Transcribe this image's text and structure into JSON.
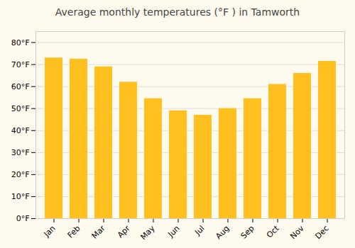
{
  "chart_data": {
    "type": "bar",
    "title": "Average monthly temperatures (°F ) in Tamworth",
    "categories": [
      "Jan",
      "Feb",
      "Mar",
      "Apr",
      "May",
      "Jun",
      "Jul",
      "Aug",
      "Sep",
      "Oct",
      "Nov",
      "Dec"
    ],
    "values": [
      73,
      72.5,
      69,
      62,
      54.5,
      49,
      47,
      50,
      54.5,
      61,
      66,
      71.5
    ],
    "color": "#FFC020",
    "ylim": [
      0,
      85
    ],
    "yticks": [
      {
        "value": 0,
        "label": "0°F"
      },
      {
        "value": 10,
        "label": "10°F"
      },
      {
        "value": 20,
        "label": "20°F"
      },
      {
        "value": 30,
        "label": "30°F"
      },
      {
        "value": 40,
        "label": "40°F"
      },
      {
        "value": 50,
        "label": "50°F"
      },
      {
        "value": 60,
        "label": "60°F"
      },
      {
        "value": 70,
        "label": "70°F"
      },
      {
        "value": 80,
        "label": "80°F"
      }
    ],
    "grid": true
  }
}
